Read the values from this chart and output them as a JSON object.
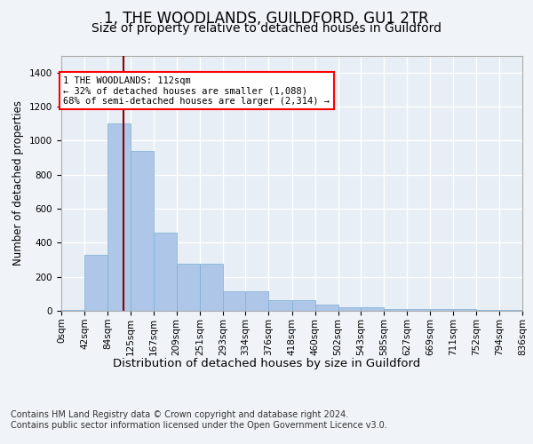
{
  "title": "1, THE WOODLANDS, GUILDFORD, GU1 2TR",
  "subtitle": "Size of property relative to detached houses in Guildford",
  "xlabel": "Distribution of detached houses by size in Guildford",
  "ylabel": "Number of detached properties",
  "bar_color": "#aec6e8",
  "bar_edge_color": "#7aafd4",
  "bg_color": "#f0f4f8",
  "plot_bg_color": "#e8eef5",
  "grid_color": "#ffffff",
  "vline_x": 112,
  "vline_color": "#8b0000",
  "bin_edges": [
    0,
    42,
    84,
    125,
    167,
    209,
    251,
    293,
    334,
    376,
    418,
    460,
    502,
    543,
    585,
    627,
    669,
    711,
    752,
    794,
    836
  ],
  "bar_heights": [
    5,
    330,
    1100,
    940,
    460,
    275,
    275,
    115,
    115,
    65,
    65,
    35,
    20,
    20,
    12,
    12,
    8,
    8,
    5,
    5
  ],
  "ylim": [
    0,
    1500
  ],
  "yticks": [
    0,
    200,
    400,
    600,
    800,
    1000,
    1200,
    1400
  ],
  "annotation_text": "1 THE WOODLANDS: 112sqm\n← 32% of detached houses are smaller (1,088)\n68% of semi-detached houses are larger (2,314) →",
  "footer_text": "Contains HM Land Registry data © Crown copyright and database right 2024.\nContains public sector information licensed under the Open Government Licence v3.0.",
  "title_fontsize": 12,
  "subtitle_fontsize": 10,
  "xlabel_fontsize": 9.5,
  "ylabel_fontsize": 8.5,
  "tick_fontsize": 7.5,
  "annotation_fontsize": 7.5,
  "footer_fontsize": 7
}
